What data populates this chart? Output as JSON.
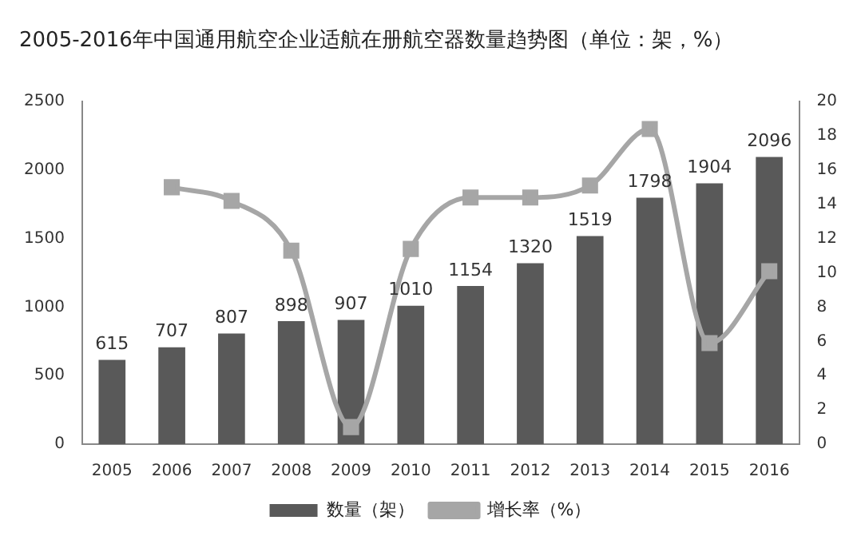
{
  "chart_data": {
    "type": "bar",
    "title": "2005-2016年中国通用航空企业适航在册航空器数量趋势图（单位：架，%）",
    "categories": [
      "2005",
      "2006",
      "2007",
      "2008",
      "2009",
      "2010",
      "2011",
      "2012",
      "2013",
      "2014",
      "2015",
      "2016"
    ],
    "series": [
      {
        "name": "数量（架）",
        "color": "#595959",
        "values": [
          615,
          707,
          807,
          898,
          907,
          1010,
          1154,
          1320,
          1519,
          1798,
          1904,
          2096
        ],
        "value_labels": [
          "615",
          "707",
          "807",
          "898",
          "907",
          "1010",
          "1154",
          "1320",
          "1519",
          "1798",
          "1904",
          "2096"
        ]
      },
      {
        "name": "增长率（%）",
        "type": "line",
        "axis": "y2",
        "color": "#a6a6a6",
        "marker": "square",
        "values": [
          null,
          15.0,
          14.2,
          11.3,
          1.0,
          11.4,
          14.4,
          14.4,
          15.1,
          18.4,
          5.9,
          10.1
        ]
      }
    ],
    "ylim": [
      0,
      2500
    ],
    "yticks": [
      0,
      500,
      1000,
      1500,
      2000,
      2500
    ],
    "y2lim": [
      0,
      20
    ],
    "y2ticks": [
      0,
      2,
      4,
      6,
      8,
      10,
      12,
      14,
      16,
      18,
      20
    ],
    "grid": false,
    "legend": "bottom"
  }
}
